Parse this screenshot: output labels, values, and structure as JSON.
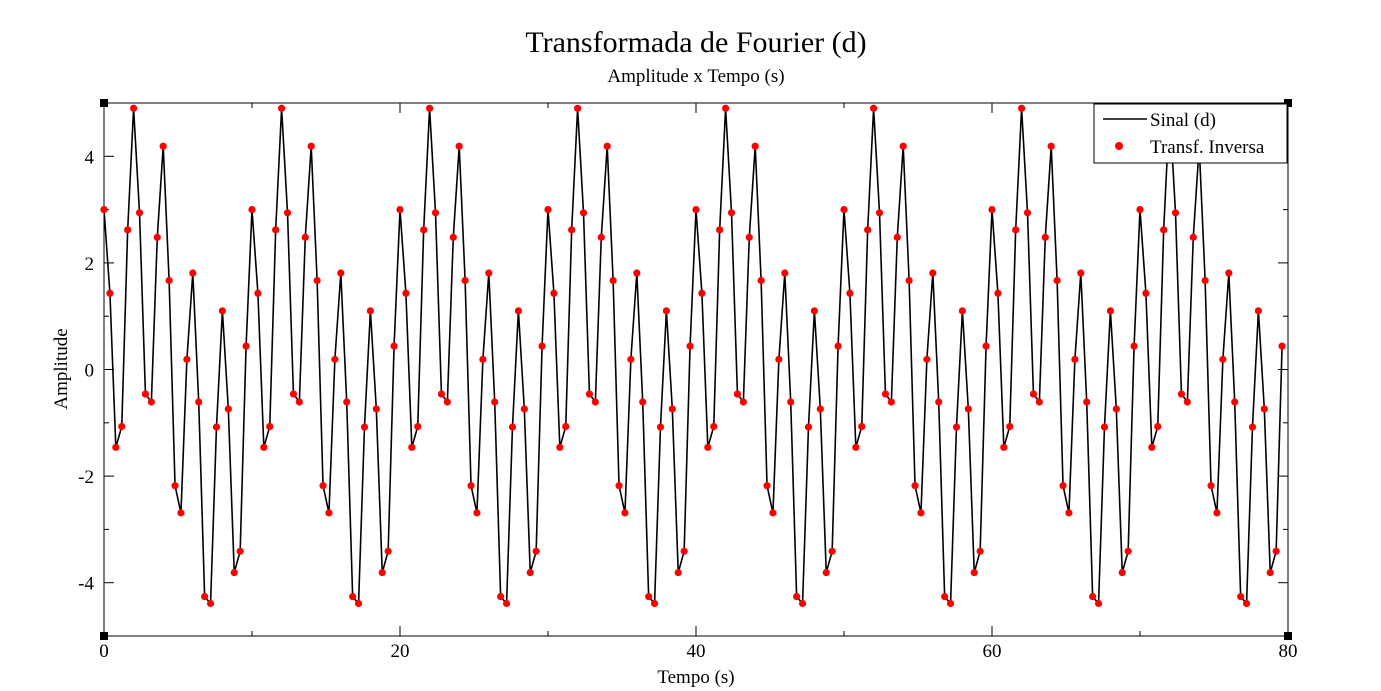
{
  "chart_data": {
    "type": "line",
    "title": "Transformada de Fourier (d)",
    "subtitle": "Amplitude x Tempo (s)",
    "xlabel": "Tempo (s)",
    "ylabel": "Amplitude",
    "xlim": [
      0,
      80
    ],
    "ylim": [
      -5,
      5
    ],
    "x_ticks": [
      0,
      20,
      40,
      60,
      80
    ],
    "y_ticks": [
      -4,
      -2,
      0,
      2,
      4
    ],
    "x_tick_labels": [
      "0",
      "20",
      "40",
      "60",
      "80"
    ],
    "y_tick_labels": [
      "-4",
      "-2",
      "0",
      "2",
      "4"
    ],
    "grid": false,
    "legend": "top-right",
    "sampling": {
      "dt": 0.4,
      "period_s": 10,
      "count": 200
    },
    "period_values": [
      3.0,
      1.43,
      -1.46,
      -1.07,
      2.62,
      4.9,
      2.94,
      -0.46,
      -0.61,
      2.48,
      4.19,
      1.67,
      -2.18,
      -2.69,
      0.19,
      1.81,
      -0.61,
      -4.26,
      -4.39,
      -1.08,
      1.1,
      -0.74,
      -3.81,
      -3.41,
      0.44
    ],
    "series": [
      {
        "name": "Sinal (d)",
        "style": "line",
        "color": "#000000"
      },
      {
        "name": "Transf. Inversa",
        "style": "markers",
        "color": "#ff0000"
      }
    ]
  },
  "colors": {
    "signal": "#000000",
    "inverse": "#ff0000",
    "frame": "#000000",
    "background": "#ffffff"
  }
}
